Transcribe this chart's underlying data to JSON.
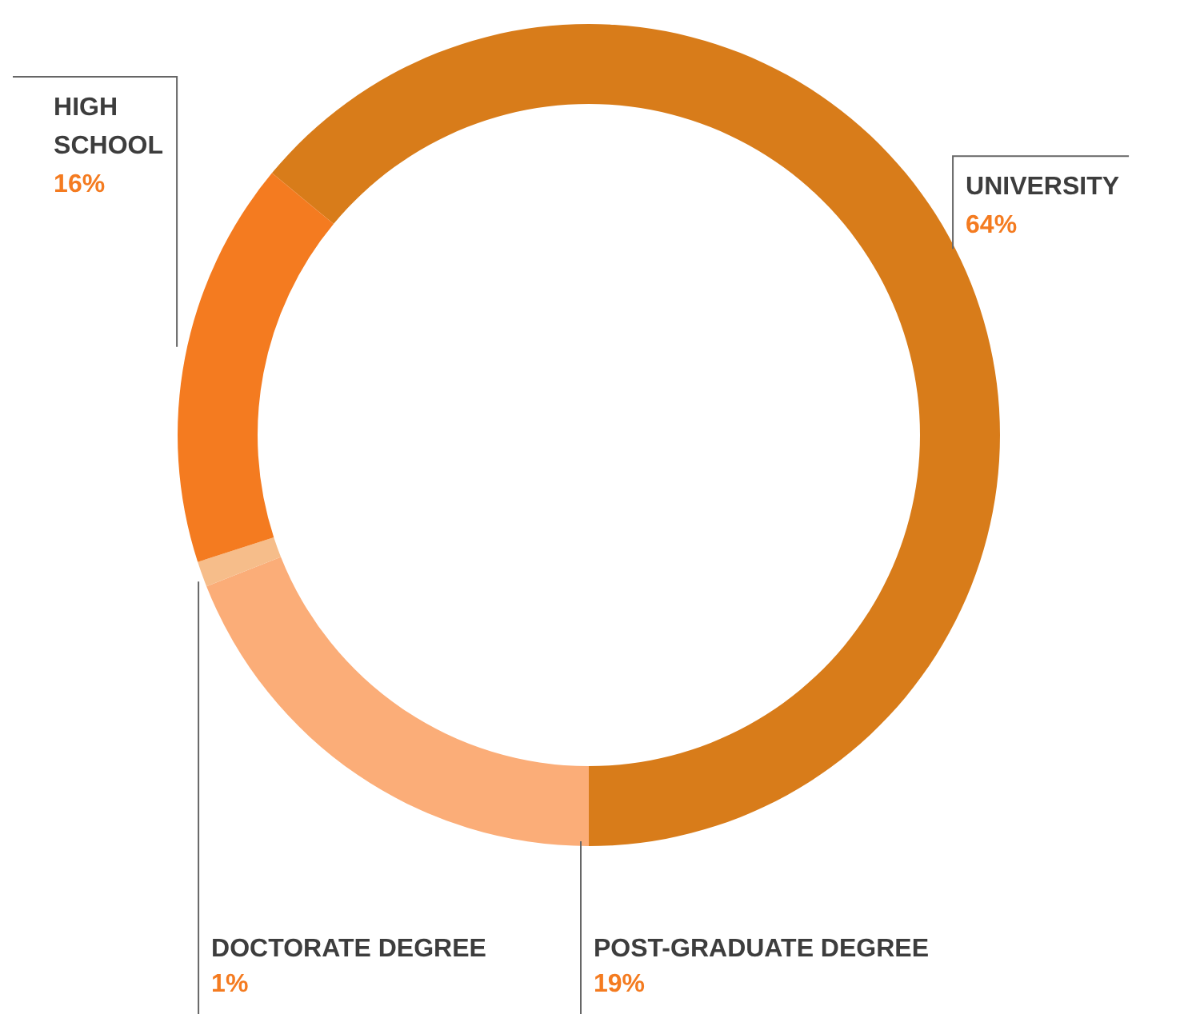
{
  "chart_data": {
    "type": "donut",
    "categories": [
      "UNIVERSITY",
      "POST-GRADUATE DEGREE",
      "DOCTORATE DEGREE",
      "HIGH SCHOOL"
    ],
    "values": [
      64,
      19,
      1,
      16
    ],
    "value_labels": [
      "64%",
      "19%",
      "1%",
      "16%"
    ],
    "colors": [
      "#d87c1a",
      "#fbad78",
      "#f6bd8a",
      "#f47b20"
    ]
  }
}
